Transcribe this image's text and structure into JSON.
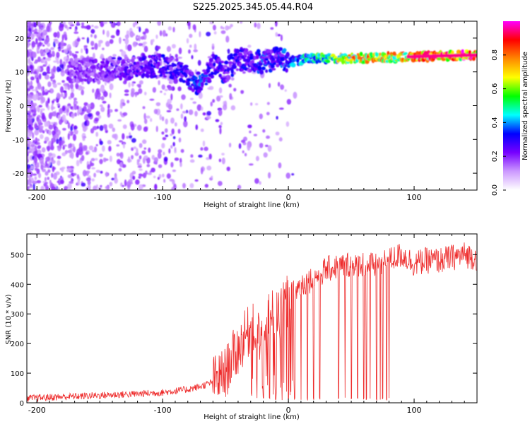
{
  "title": "S225.2025.345.05.44.R04",
  "colors": {
    "snr_line": "#ee2c2c",
    "axis": "#000000"
  },
  "chart_data": [
    {
      "type": "heatmap",
      "xlabel": "Height of straight line (km)",
      "ylabel": "Frequency (Hz)",
      "xlim": [
        -208,
        150
      ],
      "ylim": [
        -25,
        25
      ],
      "xticks": [
        -200,
        -100,
        0,
        100
      ],
      "yticks": [
        -20,
        -10,
        0,
        10,
        20
      ],
      "xtick_labels": [
        "-200",
        "-100",
        "0",
        "100"
      ],
      "ytick_labels": [
        "-20",
        "-10",
        "0",
        "10",
        "20"
      ],
      "colorbar": {
        "label": "Normalized spectral amplitude",
        "range": [
          0,
          1
        ],
        "ticks": [
          0.0,
          0.2,
          0.4,
          0.6,
          0.8
        ],
        "tick_labels": [
          "0.0",
          "0.2",
          "0.4",
          "0.6",
          "0.8"
        ],
        "colormap": [
          "#ffffff",
          "#cc99ff",
          "#7700ff",
          "#0000ff",
          "#00ffff",
          "#00ff00",
          "#ffff00",
          "#ff8800",
          "#ff0000",
          "#ff00ff"
        ]
      },
      "ridge": {
        "x": [
          -160,
          -130,
          -100,
          -85,
          -70,
          -60,
          -50,
          -40,
          -30,
          -20,
          -10,
          0,
          20,
          50,
          100,
          150
        ],
        "frequency": [
          10.5,
          11,
          12,
          10,
          6,
          12,
          10,
          14,
          13,
          13,
          14,
          13,
          14,
          14,
          14.5,
          15
        ],
        "amplitude": [
          0.2,
          0.25,
          0.3,
          0.3,
          0.35,
          0.3,
          0.3,
          0.3,
          0.3,
          0.35,
          0.3,
          0.4,
          0.5,
          0.75,
          0.8,
          0.95
        ]
      }
    },
    {
      "type": "line",
      "xlabel": "Height of straight line (km)",
      "ylabel": "SNR (10 * v/v)",
      "xlim": [
        -208,
        150
      ],
      "ylim": [
        0,
        570
      ],
      "xticks": [
        -200,
        -100,
        0,
        100
      ],
      "yticks": [
        0,
        100,
        200,
        300,
        400,
        500
      ],
      "xtick_labels": [
        "-200",
        "-100",
        "0",
        "100"
      ],
      "ytick_labels": [
        "0",
        "100",
        "200",
        "300",
        "400",
        "500"
      ],
      "series": [
        {
          "x": [
            -208,
            -180,
            -150,
            -120,
            -100,
            -90,
            -80,
            -70,
            -60,
            -50,
            -45,
            -40,
            -35,
            -30,
            -25,
            -20,
            -15,
            -10,
            -5,
            0,
            10,
            20,
            30,
            40,
            50,
            60,
            70,
            80,
            90,
            100,
            110,
            120,
            130,
            140,
            150
          ],
          "y": [
            15,
            20,
            25,
            30,
            35,
            40,
            45,
            55,
            70,
            100,
            150,
            180,
            220,
            250,
            240,
            200,
            300,
            280,
            310,
            350,
            400,
            420,
            450,
            460,
            470,
            470,
            460,
            480,
            500,
            470,
            480,
            480,
            490,
            500,
            490
          ]
        }
      ],
      "dropout_x": [
        -25,
        -20,
        -15,
        -10,
        -5,
        0,
        5,
        10,
        15,
        20,
        25,
        40,
        45,
        50,
        55,
        60,
        62,
        65,
        70,
        73,
        75,
        78,
        80
      ]
    }
  ]
}
